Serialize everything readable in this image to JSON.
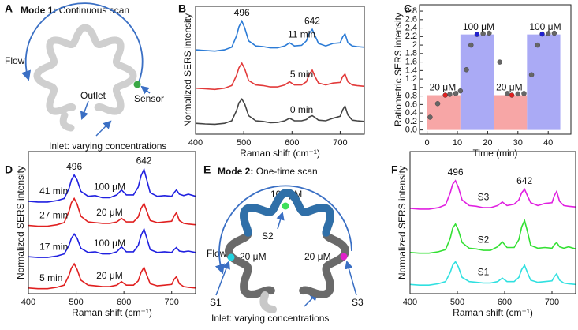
{
  "panel_labels": [
    "A",
    "B",
    "C",
    "D",
    "E",
    "F"
  ],
  "diagram_a": {
    "mode": "Mode 1:",
    "title": "Continuous scan",
    "flow": "Flow",
    "outlet": "Outlet",
    "sensor": "Sensor",
    "inlet": "Inlet: varying concentrations"
  },
  "diagram_e": {
    "mode": "Mode 2:",
    "title": "One-time scan",
    "flow": "Flow",
    "inlet": "Inlet: varying concentrations",
    "points": [
      {
        "name": "S1",
        "concentration": "20 μM",
        "color": "#22d3e0"
      },
      {
        "name": "S2",
        "concentration": "100 μM",
        "color": "#3ee05a"
      },
      {
        "name": "S3",
        "concentration": "20 μM",
        "color": "#e020c8"
      }
    ]
  },
  "chart_data": [
    {
      "type": "line",
      "x_label": "Raman shift (cm⁻¹)",
      "y_label": "Normalized SERS intensity",
      "xlim": [
        400,
        750
      ],
      "xticks": [
        400,
        500,
        600,
        700
      ],
      "ylim": [
        0,
        10
      ],
      "peak_labels": [
        496,
        642
      ],
      "x": [
        400,
        420,
        440,
        460,
        475,
        485,
        490,
        496,
        502,
        510,
        525,
        540,
        555,
        570,
        585,
        595,
        605,
        620,
        630,
        636,
        642,
        648,
        655,
        670,
        685,
        700,
        705,
        710,
        716,
        725,
        735,
        750
      ],
      "series": [
        {
          "name": "11 min",
          "color": "#2b7bd6",
          "values": [
            6.6,
            6.55,
            6.5,
            6.6,
            6.8,
            7.7,
            8.4,
            8.85,
            8.3,
            7.3,
            6.9,
            6.85,
            6.75,
            6.75,
            6.9,
            7.15,
            6.9,
            6.95,
            7.3,
            7.9,
            8.2,
            7.7,
            7.1,
            6.9,
            7.1,
            7.15,
            7.6,
            7.85,
            7.15,
            6.9,
            6.85,
            6.8
          ]
        },
        {
          "name": "5 min",
          "color": "#e23a3a",
          "values": [
            3.6,
            3.55,
            3.5,
            3.6,
            3.8,
            4.6,
            5.2,
            5.55,
            5.1,
            4.2,
            3.85,
            3.8,
            3.7,
            3.7,
            3.85,
            4.1,
            3.85,
            3.85,
            4.1,
            4.7,
            5.0,
            4.5,
            4.0,
            3.85,
            4.0,
            4.05,
            4.5,
            4.7,
            4.1,
            3.85,
            3.8,
            3.75
          ]
        },
        {
          "name": "0 min",
          "color": "#444444",
          "values": [
            0.85,
            0.8,
            0.78,
            0.85,
            1.05,
            1.85,
            2.45,
            2.75,
            2.35,
            1.45,
            1.05,
            1.0,
            0.9,
            0.92,
            1.05,
            1.25,
            1.05,
            1.05,
            1.15,
            1.35,
            1.45,
            1.3,
            1.1,
            1.05,
            1.25,
            1.4,
            1.9,
            2.2,
            1.5,
            1.1,
            1.05,
            1.0
          ]
        }
      ]
    },
    {
      "type": "combo",
      "x_label": "Time (min)",
      "y_label": "Ratiometric SERS intensity",
      "xlim": [
        -2.5,
        47.5
      ],
      "xticks": [
        0,
        10,
        20,
        30,
        40
      ],
      "ylim": [
        -0.1,
        2.95
      ],
      "yticks": [
        {
          "value": 0,
          "label": "0.0"
        },
        0.2,
        0.4,
        0.6,
        0.8,
        1,
        1.2,
        1.4,
        1.6,
        1.8,
        2,
        2.2,
        2.4,
        2.6,
        2.8
      ],
      "bars": [
        {
          "label": "20 μM",
          "x": [
            0,
            11
          ],
          "value": 0.82,
          "color": "#f7a6a6"
        },
        {
          "label": "100 μM",
          "x": [
            11,
            22
          ],
          "value": 2.25,
          "color": "#aaaaf5"
        },
        {
          "label": "20 μM",
          "x": [
            22,
            33
          ],
          "value": 0.82,
          "color": "#f7a6a6"
        },
        {
          "label": "100 μM",
          "x": [
            33,
            44
          ],
          "value": 2.25,
          "color": "#aaaaf5"
        }
      ],
      "points": {
        "x": [
          1,
          3.5,
          6,
          7.5,
          9.5,
          11,
          13,
          14.5,
          16.5,
          18.5,
          20.5,
          24,
          26.5,
          28,
          30,
          32,
          34.5,
          36.5,
          38,
          40,
          42
        ],
        "values": [
          0.3,
          0.62,
          0.82,
          0.84,
          0.86,
          0.92,
          1.42,
          2.0,
          2.25,
          2.27,
          2.28,
          1.6,
          0.86,
          0.82,
          0.85,
          0.86,
          1.3,
          2.0,
          2.26,
          2.27,
          2.28
        ],
        "colors": [
          "#666666",
          "#666666",
          "#e02020",
          "#666666",
          "#666666",
          "#666666",
          "#666666",
          "#666666",
          "#2020d0",
          "#666666",
          "#666666",
          "#666666",
          "#666666",
          "#e02020",
          "#666666",
          "#666666",
          "#666666",
          "#666666",
          "#2020d0",
          "#666666",
          "#666666"
        ]
      }
    },
    {
      "type": "line",
      "x_label": "Raman shift (cm⁻¹)",
      "y_label": "Normalized SERS intensity",
      "xlim": [
        400,
        750
      ],
      "xticks": [
        400,
        500,
        600,
        700
      ],
      "ylim": [
        0,
        10
      ],
      "peak_labels": [
        496,
        642
      ],
      "x": [
        400,
        420,
        440,
        460,
        475,
        485,
        490,
        496,
        502,
        510,
        525,
        540,
        555,
        570,
        585,
        595,
        605,
        620,
        630,
        636,
        642,
        648,
        655,
        670,
        685,
        700,
        705,
        710,
        716,
        725,
        735,
        750
      ],
      "series": [
        {
          "name": "5 min",
          "concentration": "20 μM",
          "color": "#e02020",
          "values": [
            0.4,
            0.35,
            0.35,
            0.45,
            0.6,
            1.3,
            1.8,
            2.1,
            1.7,
            0.95,
            0.6,
            0.55,
            0.5,
            0.5,
            0.6,
            0.85,
            0.6,
            0.6,
            0.9,
            1.5,
            1.85,
            1.3,
            0.7,
            0.55,
            0.6,
            0.65,
            1.0,
            1.2,
            0.7,
            0.5,
            0.45,
            0.4
          ]
        },
        {
          "name": "17 min",
          "concentration": "100 μM",
          "color": "#2020e0",
          "values": [
            2.6,
            2.55,
            2.55,
            2.65,
            2.8,
            3.4,
            3.9,
            4.2,
            3.9,
            3.2,
            2.9,
            2.95,
            2.8,
            2.8,
            2.95,
            3.3,
            2.95,
            2.95,
            3.4,
            4.1,
            4.55,
            3.9,
            3.1,
            2.9,
            2.95,
            2.9,
            3.1,
            3.25,
            3.0,
            2.95,
            3.0,
            2.9
          ]
        },
        {
          "name": "27 min",
          "concentration": "20 μM",
          "color": "#e02020",
          "values": [
            4.8,
            4.75,
            4.75,
            4.85,
            5.0,
            5.8,
            6.4,
            6.7,
            6.3,
            5.45,
            5.05,
            5.0,
            4.95,
            4.95,
            5.05,
            5.3,
            5.05,
            5.05,
            5.4,
            6.0,
            6.35,
            5.8,
            5.15,
            5.0,
            5.05,
            5.1,
            5.45,
            5.7,
            5.15,
            4.95,
            4.9,
            4.85
          ]
        },
        {
          "name": "41 min",
          "concentration": "100 μM",
          "color": "#2020e0",
          "values": [
            6.5,
            6.45,
            6.45,
            6.55,
            6.7,
            7.4,
            8.0,
            8.35,
            8.0,
            7.2,
            6.85,
            6.9,
            6.75,
            6.75,
            6.95,
            7.3,
            6.95,
            6.95,
            7.5,
            8.3,
            8.75,
            8.0,
            7.1,
            6.85,
            6.9,
            6.85,
            7.1,
            7.3,
            7.0,
            6.9,
            7.0,
            6.85
          ]
        }
      ]
    },
    {
      "type": "line",
      "x_label": "Raman shift (cm⁻¹)",
      "y_label": "Normalized SERS intensity",
      "xlim": [
        400,
        750
      ],
      "xticks": [
        400,
        500,
        600,
        700
      ],
      "ylim": [
        0,
        10
      ],
      "peak_labels": [
        496,
        642
      ],
      "x": [
        400,
        420,
        440,
        460,
        475,
        485,
        490,
        496,
        502,
        510,
        525,
        540,
        555,
        570,
        585,
        595,
        605,
        620,
        630,
        636,
        642,
        648,
        655,
        670,
        685,
        700,
        705,
        710,
        716,
        725,
        735,
        750
      ],
      "series": [
        {
          "name": "S3",
          "color": "#e020e0",
          "values": [
            6.0,
            5.95,
            5.95,
            6.05,
            6.25,
            7.1,
            7.7,
            7.95,
            7.5,
            6.6,
            6.2,
            6.15,
            6.05,
            6.05,
            6.2,
            6.45,
            6.2,
            6.3,
            6.6,
            7.1,
            7.35,
            6.9,
            6.4,
            6.2,
            6.35,
            6.4,
            6.9,
            7.2,
            6.5,
            6.2,
            6.15,
            6.1
          ]
        },
        {
          "name": "S2",
          "color": "#33e033",
          "values": [
            2.9,
            2.85,
            2.85,
            2.95,
            3.1,
            3.9,
            4.6,
            4.9,
            4.5,
            3.6,
            3.2,
            3.15,
            3.05,
            3.05,
            3.3,
            3.65,
            3.25,
            3.25,
            3.8,
            4.7,
            5.15,
            4.4,
            3.4,
            3.2,
            3.25,
            3.2,
            3.45,
            3.6,
            3.3,
            3.2,
            3.3,
            3.15
          ]
        },
        {
          "name": "S1",
          "color": "#30e0e0",
          "values": [
            0.65,
            0.6,
            0.6,
            0.7,
            0.85,
            1.5,
            2.0,
            2.25,
            1.9,
            1.15,
            0.85,
            0.8,
            0.75,
            0.75,
            0.85,
            1.1,
            0.85,
            0.85,
            1.15,
            1.7,
            2.0,
            1.5,
            0.95,
            0.8,
            0.85,
            0.9,
            1.2,
            1.4,
            0.95,
            0.75,
            0.7,
            0.65
          ]
        }
      ]
    }
  ]
}
